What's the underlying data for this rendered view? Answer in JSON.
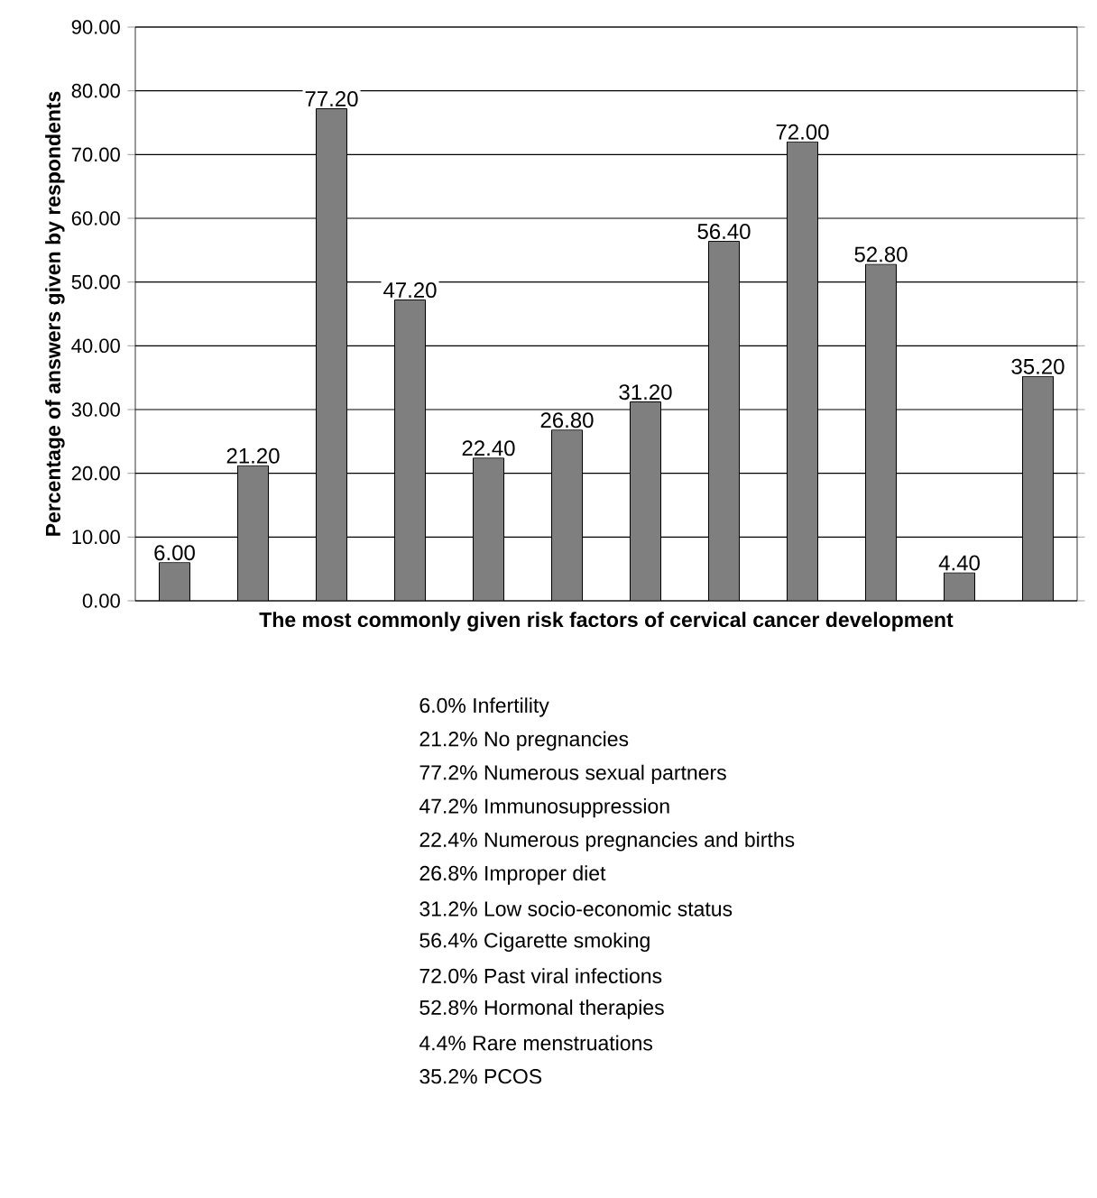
{
  "chart_data": {
    "type": "bar",
    "xlabel": "The most commonly given risk factors of cervical cancer development",
    "ylabel": "Percentage of answers given by respondents",
    "categories": [
      null,
      null,
      null,
      null,
      null,
      null,
      null,
      null,
      null,
      null,
      null,
      null
    ],
    "values": [
      6.0,
      21.2,
      77.2,
      47.2,
      22.4,
      26.8,
      31.2,
      56.4,
      72.0,
      52.8,
      4.4,
      35.2
    ],
    "value_labels": [
      "6.00",
      "21.20",
      "77.20",
      "47.20",
      "22.40",
      "26.80",
      "31.20",
      "56.40",
      "72.00",
      "52.80",
      "4.40",
      "35.20"
    ],
    "color": "#7f7f7f",
    "ylim": [
      0,
      90
    ],
    "yticks": [
      {
        "value": 0,
        "label": "0.00"
      },
      {
        "value": 10,
        "label": "10.00"
      },
      {
        "value": 20,
        "label": "20.00"
      },
      {
        "value": 30,
        "label": "30.00"
      },
      {
        "value": 40,
        "label": "40.00"
      },
      {
        "value": 50,
        "label": "50.00"
      },
      {
        "value": 60,
        "label": "60.00"
      },
      {
        "value": 70,
        "label": "70.00"
      },
      {
        "value": 80,
        "label": "80.00"
      },
      {
        "value": 90,
        "label": "90.00"
      }
    ],
    "grid": "y",
    "annotations": [
      "6.0% Infertility",
      "21.2% No pregnancies",
      "77.2% Numerous sexual partners",
      "47.2% Immunosuppression",
      "22.4% Numerous pregnancies and births",
      "26.8% Improper diet",
      "31.2% Low socio-economic status",
      "56.4% Cigarette smoking",
      "72.0% Past viral infections",
      "52.8% Hormonal therapies",
      "4.4% Rare menstruations",
      "35.2% PCOS"
    ]
  }
}
